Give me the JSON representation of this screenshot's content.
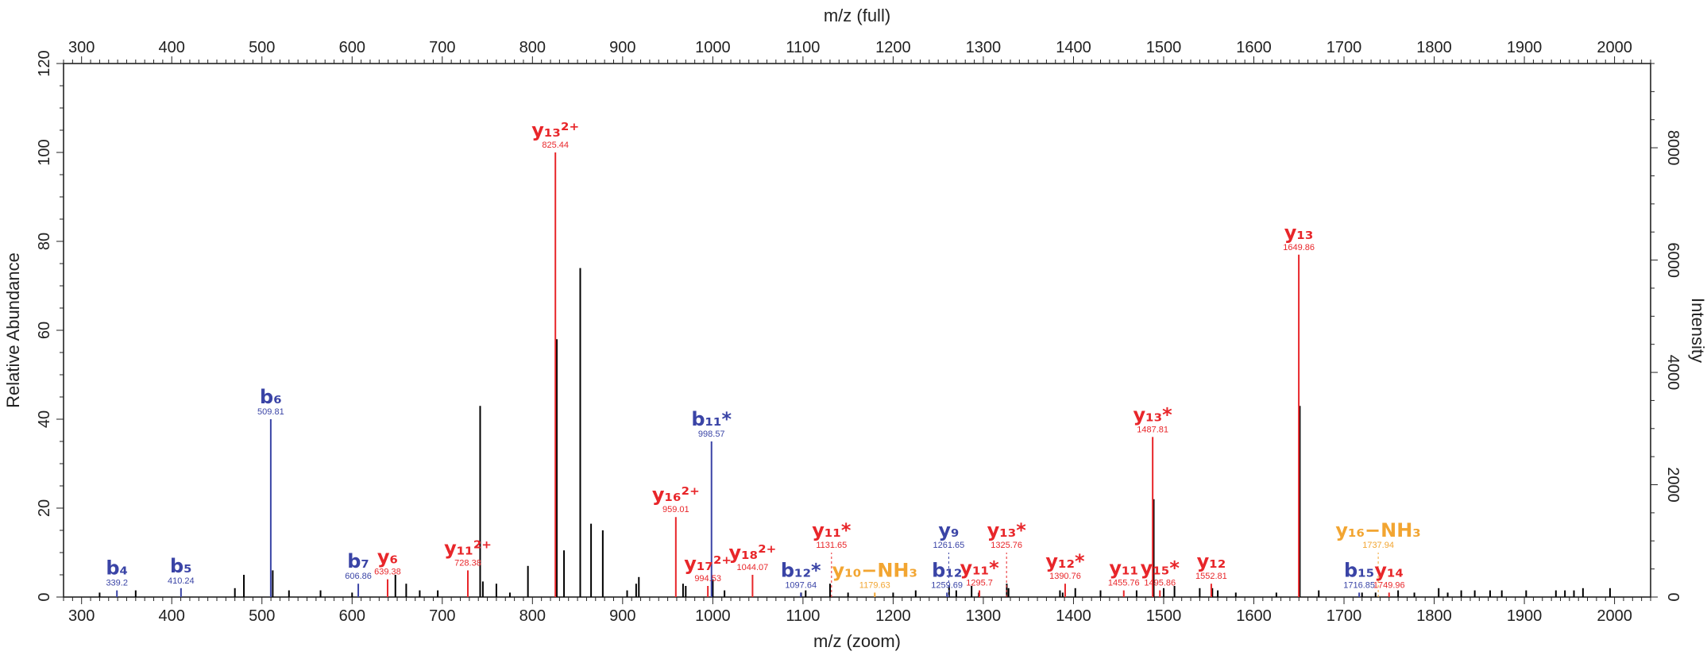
{
  "chart_data": {
    "type": "bar",
    "xlabel_top": "m/z (full)",
    "xlabel_bottom": "m/z (zoom)",
    "ylabel_left": "Relative Abundance",
    "ylabel_right": "Intensity",
    "xlim": [
      280,
      2040
    ],
    "ylim_left": [
      0,
      120
    ],
    "ylim_right": [
      0,
      9500
    ],
    "x_ticks": [
      300,
      400,
      500,
      600,
      700,
      800,
      900,
      1000,
      1100,
      1200,
      1300,
      1400,
      1500,
      1600,
      1700,
      1800,
      1900,
      2000
    ],
    "x_tick_labels": [
      "300",
      "400",
      "500",
      "600",
      "700",
      "800",
      "900",
      "1000",
      "1100",
      "1200",
      "1300",
      "1400",
      "1500",
      "1600",
      "1700",
      "1800",
      "1900",
      "2000"
    ],
    "y_left_ticks": [
      0,
      20,
      40,
      60,
      80,
      100,
      120
    ],
    "y_left_tick_labels": [
      "0",
      "20",
      "40",
      "60",
      "80",
      "100",
      "120"
    ],
    "y_right_ticks": [
      0,
      2000,
      4000,
      6000,
      8000
    ],
    "y_right_tick_labels": [
      "0",
      "2000",
      "4000",
      "6000",
      "8000"
    ],
    "grid": false,
    "colors": {
      "y_ion": "#e8262a",
      "b_ion": "#3a44a6",
      "nh3_ion": "#f2a531",
      "other": "#000000"
    },
    "annotated_peaks": [
      {
        "label": "b₄",
        "value": "339.2",
        "mz": 339.2,
        "intensity": 1.5,
        "ion": "b_ion",
        "dashed": false
      },
      {
        "label": "b₅",
        "value": "410.24",
        "mz": 410.24,
        "intensity": 2.0,
        "ion": "b_ion",
        "dashed": false
      },
      {
        "label": "b₆",
        "value": "509.81",
        "mz": 509.81,
        "intensity": 40.0,
        "ion": "b_ion",
        "dashed": false
      },
      {
        "label": "b₇",
        "value": "606.86",
        "mz": 606.86,
        "intensity": 3.0,
        "ion": "b_ion",
        "dashed": false
      },
      {
        "label": "y₆",
        "value": "639.38",
        "mz": 639.38,
        "intensity": 4.0,
        "ion": "y_ion",
        "dashed": false
      },
      {
        "label": "y₁₁²⁺",
        "value": "728.38",
        "mz": 728.38,
        "intensity": 6.0,
        "ion": "y_ion",
        "dashed": false
      },
      {
        "label": "y₁₃²⁺",
        "value": "825.44",
        "mz": 825.44,
        "intensity": 100.0,
        "ion": "y_ion",
        "dashed": false
      },
      {
        "label": "y₁₆²⁺",
        "value": "959.01",
        "mz": 959.01,
        "intensity": 18.0,
        "ion": "y_ion",
        "dashed": false
      },
      {
        "label": "y₁₇²⁺",
        "value": "994.53",
        "mz": 994.53,
        "intensity": 2.5,
        "ion": "y_ion",
        "dashed": false
      },
      {
        "label": "b₁₁*",
        "value": "998.57",
        "mz": 998.57,
        "intensity": 35.0,
        "ion": "b_ion",
        "dashed": false
      },
      {
        "label": "y₁₈²⁺",
        "value": "1044.07",
        "mz": 1044.07,
        "intensity": 5.0,
        "ion": "y_ion",
        "dashed": false
      },
      {
        "label": "b₁₂*",
        "value": "1097.64",
        "mz": 1097.64,
        "intensity": 1.0,
        "ion": "b_ion",
        "dashed": false
      },
      {
        "label": "y₁₁*",
        "value": "1131.65",
        "mz": 1131.65,
        "intensity": 10.0,
        "ion": "y_ion",
        "dashed": true
      },
      {
        "label": "y₁₀−NH₃",
        "value": "1179.63",
        "mz": 1179.63,
        "intensity": 1.0,
        "ion": "nh3_ion",
        "dashed": false
      },
      {
        "label": "b₁₂",
        "value": "1259.69",
        "mz": 1259.69,
        "intensity": 1.0,
        "ion": "b_ion",
        "dashed": false
      },
      {
        "label": "y₉",
        "value": "1261.65",
        "mz": 1261.65,
        "intensity": 10.0,
        "ion": "b_ion",
        "dashed": true
      },
      {
        "label": "y₁₁*",
        "value": "1295.7",
        "mz": 1295.7,
        "intensity": 1.5,
        "ion": "y_ion",
        "dashed": false
      },
      {
        "label": "y₁₃*",
        "value": "1325.76",
        "mz": 1325.76,
        "intensity": 10.0,
        "ion": "y_ion",
        "dashed": true
      },
      {
        "label": "y₁₂*",
        "value": "1390.76",
        "mz": 1390.76,
        "intensity": 3.0,
        "ion": "y_ion",
        "dashed": false
      },
      {
        "label": "y₁₁",
        "value": "1455.76",
        "mz": 1455.76,
        "intensity": 1.5,
        "ion": "y_ion",
        "dashed": false
      },
      {
        "label": "y₁₃*",
        "value": "1487.81",
        "mz": 1487.81,
        "intensity": 36.0,
        "ion": "y_ion",
        "dashed": false
      },
      {
        "label": "y₁₅*",
        "value": "1495.86",
        "mz": 1495.86,
        "intensity": 1.5,
        "ion": "y_ion",
        "dashed": false
      },
      {
        "label": "y₁₂",
        "value": "1552.81",
        "mz": 1552.81,
        "intensity": 3.0,
        "ion": "y_ion",
        "dashed": false
      },
      {
        "label": "y₁₃",
        "value": "1649.86",
        "mz": 1649.86,
        "intensity": 77.0,
        "ion": "y_ion",
        "dashed": false
      },
      {
        "label": "b₁₅",
        "value": "1716.85",
        "mz": 1716.85,
        "intensity": 1.0,
        "ion": "b_ion",
        "dashed": false
      },
      {
        "label": "y₁₆−NH₃",
        "value": "1737.94",
        "mz": 1737.94,
        "intensity": 10.0,
        "ion": "nh3_ion",
        "dashed": true
      },
      {
        "label": "y₁₄",
        "value": "1749.96",
        "mz": 1749.96,
        "intensity": 1.0,
        "ion": "y_ion",
        "dashed": false
      }
    ],
    "unlabeled_peaks": [
      {
        "mz": 320,
        "intensity": 1
      },
      {
        "mz": 360,
        "intensity": 1.5
      },
      {
        "mz": 470,
        "intensity": 2
      },
      {
        "mz": 480,
        "intensity": 5
      },
      {
        "mz": 512,
        "intensity": 6
      },
      {
        "mz": 530,
        "intensity": 1.5
      },
      {
        "mz": 565,
        "intensity": 1.5
      },
      {
        "mz": 600,
        "intensity": 1
      },
      {
        "mz": 648,
        "intensity": 5
      },
      {
        "mz": 660,
        "intensity": 3
      },
      {
        "mz": 675,
        "intensity": 1.5
      },
      {
        "mz": 695,
        "intensity": 1.5
      },
      {
        "mz": 742,
        "intensity": 43
      },
      {
        "mz": 745,
        "intensity": 3.5
      },
      {
        "mz": 760,
        "intensity": 3
      },
      {
        "mz": 775,
        "intensity": 1
      },
      {
        "mz": 795,
        "intensity": 7
      },
      {
        "mz": 827,
        "intensity": 58
      },
      {
        "mz": 835,
        "intensity": 10.5
      },
      {
        "mz": 853,
        "intensity": 74
      },
      {
        "mz": 865,
        "intensity": 16.5
      },
      {
        "mz": 878,
        "intensity": 15
      },
      {
        "mz": 905,
        "intensity": 1.5
      },
      {
        "mz": 915,
        "intensity": 3
      },
      {
        "mz": 918,
        "intensity": 4.5
      },
      {
        "mz": 967,
        "intensity": 3
      },
      {
        "mz": 970,
        "intensity": 2.5
      },
      {
        "mz": 1000,
        "intensity": 4
      },
      {
        "mz": 1013,
        "intensity": 1.5
      },
      {
        "mz": 1098,
        "intensity": 1
      },
      {
        "mz": 1103,
        "intensity": 1.5
      },
      {
        "mz": 1130,
        "intensity": 3
      },
      {
        "mz": 1150,
        "intensity": 1
      },
      {
        "mz": 1200,
        "intensity": 1
      },
      {
        "mz": 1225,
        "intensity": 1.5
      },
      {
        "mz": 1262,
        "intensity": 2.5
      },
      {
        "mz": 1270,
        "intensity": 1.5
      },
      {
        "mz": 1287,
        "intensity": 2.5
      },
      {
        "mz": 1295,
        "intensity": 1
      },
      {
        "mz": 1326,
        "intensity": 3
      },
      {
        "mz": 1328,
        "intensity": 2
      },
      {
        "mz": 1385,
        "intensity": 1.5
      },
      {
        "mz": 1388,
        "intensity": 1
      },
      {
        "mz": 1402,
        "intensity": 2
      },
      {
        "mz": 1430,
        "intensity": 1.5
      },
      {
        "mz": 1470,
        "intensity": 1.5
      },
      {
        "mz": 1489,
        "intensity": 22
      },
      {
        "mz": 1500,
        "intensity": 2
      },
      {
        "mz": 1512,
        "intensity": 2.5
      },
      {
        "mz": 1540,
        "intensity": 2
      },
      {
        "mz": 1554,
        "intensity": 2
      },
      {
        "mz": 1560,
        "intensity": 1.5
      },
      {
        "mz": 1580,
        "intensity": 1
      },
      {
        "mz": 1625,
        "intensity": 1
      },
      {
        "mz": 1651,
        "intensity": 43
      },
      {
        "mz": 1672,
        "intensity": 1.5
      },
      {
        "mz": 1720,
        "intensity": 1
      },
      {
        "mz": 1735,
        "intensity": 1
      },
      {
        "mz": 1760,
        "intensity": 1.5
      },
      {
        "mz": 1778,
        "intensity": 1
      },
      {
        "mz": 1805,
        "intensity": 2
      },
      {
        "mz": 1815,
        "intensity": 1
      },
      {
        "mz": 1830,
        "intensity": 1.5
      },
      {
        "mz": 1845,
        "intensity": 1.5
      },
      {
        "mz": 1862,
        "intensity": 1.5
      },
      {
        "mz": 1875,
        "intensity": 1.5
      },
      {
        "mz": 1902,
        "intensity": 1.5
      },
      {
        "mz": 1935,
        "intensity": 1.5
      },
      {
        "mz": 1945,
        "intensity": 1.5
      },
      {
        "mz": 1955,
        "intensity": 1.5
      },
      {
        "mz": 1965,
        "intensity": 2
      },
      {
        "mz": 1995,
        "intensity": 2
      }
    ]
  }
}
